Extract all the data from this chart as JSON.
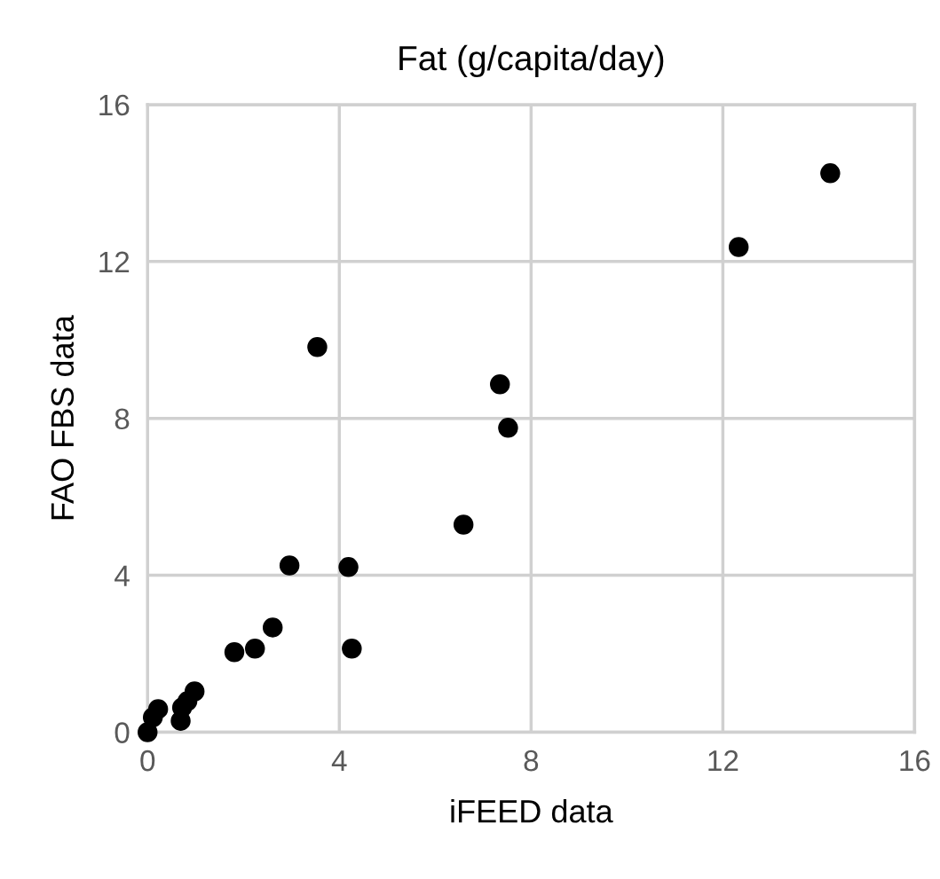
{
  "chart_data": {
    "type": "scatter",
    "title": "Fat (g/capita/day)",
    "xlabel": "iFEED data",
    "ylabel": "FAO FBS data",
    "x": [
      14.24,
      12.33,
      3.54,
      7.35,
      7.52,
      6.59,
      2.96,
      4.19,
      2.61,
      2.24,
      1.81,
      4.26,
      0.98,
      0.83,
      0.72,
      0.69,
      0.22,
      0.11,
      0.0
    ],
    "values": [
      14.25,
      12.37,
      9.82,
      8.87,
      7.76,
      5.29,
      4.25,
      4.21,
      2.67,
      2.13,
      2.04,
      2.13,
      1.04,
      0.79,
      0.63,
      0.29,
      0.59,
      0.38,
      0.0
    ],
    "color": "#000000",
    "marker": "circle",
    "grid": true,
    "xlim": [
      0,
      16
    ],
    "ylim": [
      0,
      16
    ],
    "xticks": [
      0,
      4,
      8,
      12,
      16
    ],
    "yticks": [
      0,
      4,
      8,
      12,
      16
    ]
  }
}
